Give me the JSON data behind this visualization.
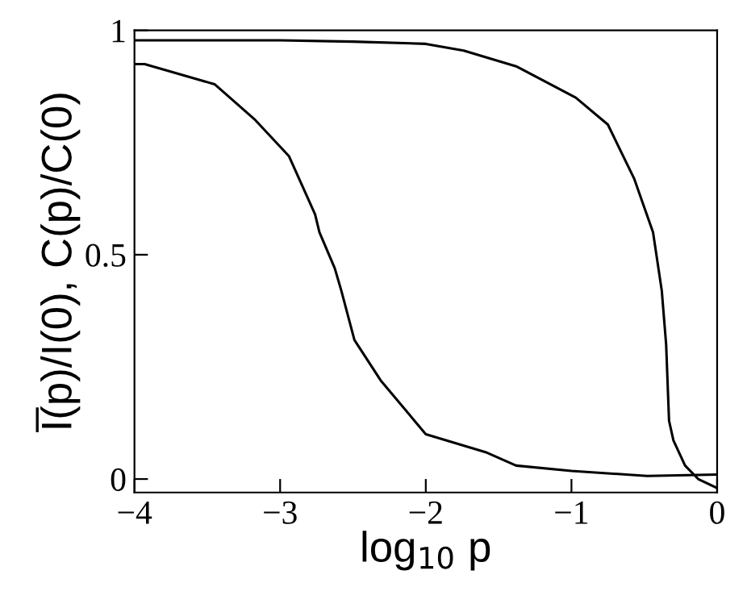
{
  "chart_data": {
    "type": "line",
    "xlabel": "log$_{10}$ p",
    "ylabel": "I̅(p)/I(0), C(p)/C(0)",
    "xlim": [
      -4,
      0
    ],
    "ylim": [
      -0.03,
      1
    ],
    "xticks": [
      {
        "value": -4,
        "label": "−4"
      },
      {
        "value": -3,
        "label": "−3"
      },
      {
        "value": -2,
        "label": "−2"
      },
      {
        "value": -1,
        "label": "−1"
      },
      0
    ],
    "yticks": [
      0,
      0.5,
      1
    ],
    "grid": false,
    "legend": false,
    "marker": "none",
    "line_style": "solid",
    "series": [
      {
        "color": "#000000",
        "x": [
          -4,
          -3,
          -2.5,
          -2,
          -1.74,
          -1.38,
          -0.97,
          -0.75,
          -0.57,
          -0.44,
          -0.38,
          -0.35,
          -0.33,
          -0.3,
          -0.22,
          -0.13,
          0
        ],
        "values": [
          0.978,
          0.978,
          0.975,
          0.97,
          0.955,
          0.92,
          0.85,
          0.79,
          0.67,
          0.55,
          0.42,
          0.3,
          0.13,
          0.086,
          0.03,
          0.0,
          -0.02
        ]
      },
      {
        "color": "#000000",
        "x": [
          -4,
          -3.93,
          -3.45,
          -3.17,
          -2.94,
          -2.76,
          -2.73,
          -2.625,
          -2.58,
          -2.49,
          -2.31,
          -2.0,
          -1.59,
          -1.38,
          -1.0,
          -0.48,
          0
        ],
        "values": [
          0.925,
          0.925,
          0.88,
          0.8,
          0.72,
          0.59,
          0.55,
          0.47,
          0.42,
          0.31,
          0.22,
          0.1,
          0.06,
          0.03,
          0.018,
          0.007,
          0.01
        ]
      }
    ]
  }
}
